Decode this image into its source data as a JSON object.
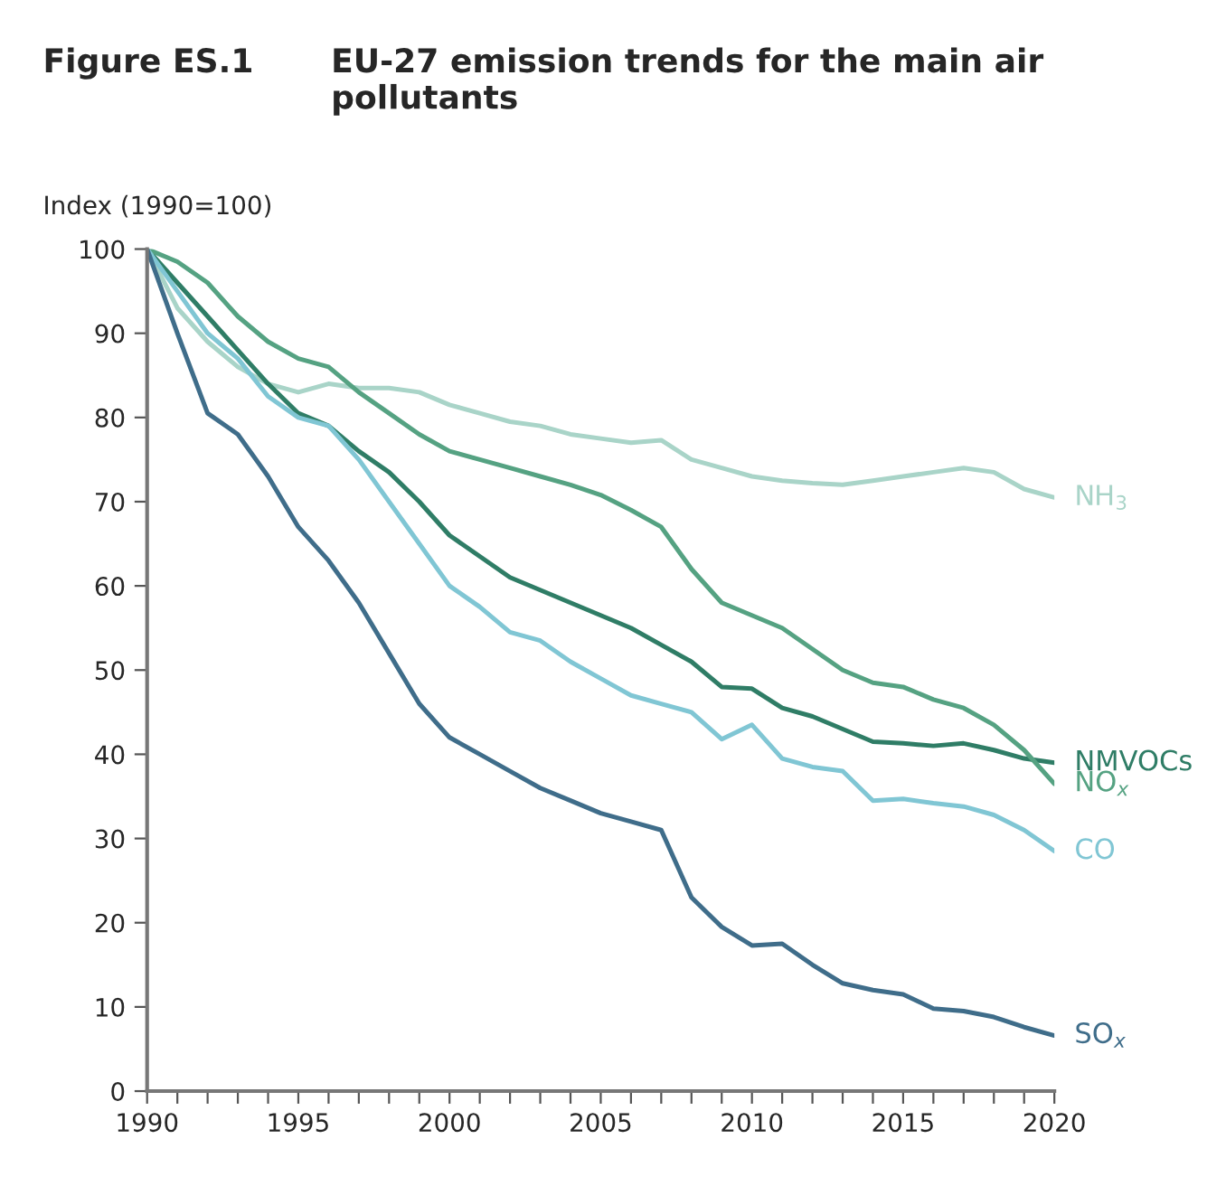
{
  "chart_data": {
    "type": "line",
    "title": "Figure ES.1",
    "subtitle": "EU-27 emission trends for the main air pollutants",
    "ylabel": "Index (1990=100)",
    "x": [
      1990,
      1991,
      1992,
      1993,
      1994,
      1995,
      1996,
      1997,
      1998,
      1999,
      2000,
      2001,
      2002,
      2003,
      2004,
      2005,
      2006,
      2007,
      2008,
      2009,
      2010,
      2011,
      2012,
      2013,
      2014,
      2015,
      2016,
      2017,
      2018,
      2019,
      2020
    ],
    "series": [
      {
        "name": "NH$_{3}$",
        "color": "#a9d4c8",
        "values": [
          100,
          93,
          89,
          86,
          84,
          83,
          84,
          83.5,
          83.5,
          83,
          81.5,
          80.5,
          79.5,
          79,
          78,
          77.5,
          77,
          77.3,
          75,
          74,
          73,
          72.5,
          72.2,
          72,
          72.5,
          73,
          73.5,
          74,
          73.5,
          71.5,
          70.5
        ]
      },
      {
        "name": "NMVOCs",
        "color": "#2f7d66",
        "values": [
          100,
          96,
          92,
          88,
          84,
          80.5,
          79,
          76,
          73.5,
          70,
          66,
          63.5,
          61,
          59.5,
          58,
          56.5,
          55,
          53,
          51,
          48,
          47.8,
          45.5,
          44.5,
          43,
          41.5,
          41.3,
          41,
          41.3,
          40.5,
          39.5,
          39
        ]
      },
      {
        "name": "NO$_{x}$",
        "color": "#55a282",
        "values": [
          100,
          98.5,
          96,
          92,
          89,
          87,
          86,
          83,
          80.5,
          78,
          76,
          75,
          74,
          73,
          72,
          70.8,
          69,
          67,
          62,
          58,
          56.5,
          55,
          52.5,
          50,
          48.5,
          48,
          46.5,
          45.5,
          43.5,
          40.5,
          36.5
        ]
      },
      {
        "name": "CO",
        "color": "#80c6d4",
        "values": [
          100,
          95,
          90,
          87,
          82.5,
          80,
          79,
          75,
          70,
          65,
          60,
          57.5,
          54.5,
          53.5,
          51,
          49,
          47,
          46,
          45,
          41.8,
          43.5,
          39.5,
          38.5,
          38,
          34.5,
          34.7,
          34.2,
          33.8,
          32.8,
          31,
          28.5
        ]
      },
      {
        "name": "SO$_{x}$",
        "color": "#3f6d8a",
        "values": [
          100,
          90,
          80.5,
          78,
          73,
          67,
          63,
          58,
          52,
          46,
          42,
          40,
          38,
          36,
          34.5,
          33,
          32,
          31,
          23,
          19.5,
          17.3,
          17.5,
          15,
          12.8,
          12,
          11.5,
          9.8,
          9.5,
          8.8,
          7.6,
          6.6
        ]
      }
    ],
    "xlim": [
      1990,
      2020
    ],
    "xticks": [
      1990,
      {
        "value": 1991,
        "label": null
      },
      {
        "value": 1992,
        "label": null
      },
      {
        "value": 1993,
        "label": null
      },
      {
        "value": 1994,
        "label": null
      },
      1995,
      {
        "value": 1996,
        "label": null
      },
      {
        "value": 1997,
        "label": null
      },
      {
        "value": 1998,
        "label": null
      },
      {
        "value": 1999,
        "label": null
      },
      2000,
      {
        "value": 2001,
        "label": null
      },
      {
        "value": 2002,
        "label": null
      },
      {
        "value": 2003,
        "label": null
      },
      {
        "value": 2004,
        "label": null
      },
      2005,
      {
        "value": 2006,
        "label": null
      },
      {
        "value": 2007,
        "label": null
      },
      {
        "value": 2008,
        "label": null
      },
      {
        "value": 2009,
        "label": null
      },
      2010,
      {
        "value": 2011,
        "label": null
      },
      {
        "value": 2012,
        "label": null
      },
      {
        "value": 2013,
        "label": null
      },
      {
        "value": 2014,
        "label": null
      },
      2015,
      {
        "value": 2016,
        "label": null
      },
      {
        "value": 2017,
        "label": null
      },
      {
        "value": 2018,
        "label": null
      },
      {
        "value": 2019,
        "label": null
      },
      2020
    ],
    "ylim": [
      0,
      100
    ],
    "yticks": [
      0,
      10,
      20,
      30,
      40,
      50,
      60,
      70,
      80,
      90,
      100
    ],
    "grid": false,
    "legend": false,
    "marker": "none",
    "line_style": "solid"
  }
}
